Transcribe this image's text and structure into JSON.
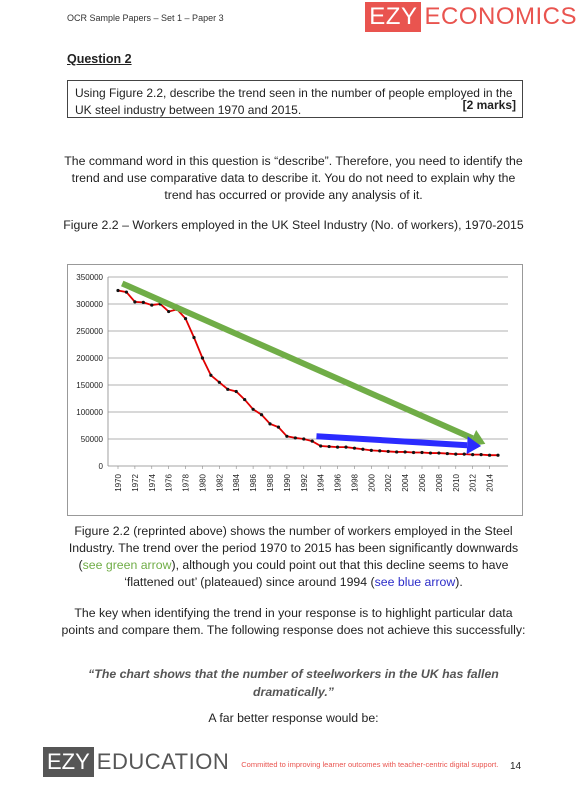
{
  "header": {
    "doc_title": "OCR Sample Papers – Set 1 – Paper 3",
    "logo_box": "EZY",
    "logo_word": "ECONOMICS"
  },
  "question": {
    "title": "Question 2",
    "text": "Using Figure 2.2, describe the trend seen in the number of people employed in the UK steel industry between 1970 and 2015.",
    "marks": "[2 marks]"
  },
  "intro": "The command word in this question is “describe”. Therefore, you need to identify the trend and use comparative data to describe it. You do not need to explain why the trend has occurred or provide any analysis of it.",
  "figure_caption": "Figure 2.2 – Workers employed in the UK Steel Industry (No. of workers), 1970-2015",
  "chart_data": {
    "type": "line",
    "title": "",
    "xlabel": "",
    "ylabel": "",
    "ylim": [
      0,
      350000
    ],
    "yticks": [
      "0",
      "50000",
      "100000",
      "150000",
      "200000",
      "250000",
      "300000",
      "350000"
    ],
    "xtick_labels": [
      "1970",
      "1972",
      "1974",
      "1976",
      "1978",
      "1980",
      "1982",
      "1984",
      "1986",
      "1988",
      "1990",
      "1992",
      "1994",
      "1996",
      "1998",
      "2000",
      "2002",
      "2004",
      "2006",
      "2008",
      "2010",
      "2012",
      "2014"
    ],
    "grid": "horizontal",
    "series": [
      {
        "color": "#e00000",
        "x": [
          1970,
          1971,
          1972,
          1973,
          1974,
          1975,
          1976,
          1977,
          1978,
          1979,
          1980,
          1981,
          1982,
          1983,
          1984,
          1985,
          1986,
          1987,
          1988,
          1989,
          1990,
          1991,
          1992,
          1993,
          1994,
          1995,
          1996,
          1997,
          1998,
          1999,
          2000,
          2001,
          2002,
          2003,
          2004,
          2005,
          2006,
          2007,
          2008,
          2009,
          2010,
          2011,
          2012,
          2013,
          2014,
          2015
        ],
        "values": [
          325000,
          322000,
          304000,
          303000,
          298000,
          300000,
          286000,
          290000,
          273000,
          238000,
          200000,
          168000,
          155000,
          142000,
          138000,
          123000,
          105000,
          95000,
          78000,
          72000,
          55000,
          52000,
          50000,
          46000,
          37000,
          36000,
          35000,
          35000,
          33000,
          31000,
          29000,
          28000,
          27000,
          26000,
          26000,
          25000,
          25000,
          24000,
          24000,
          23000,
          22000,
          22000,
          21000,
          21000,
          20000,
          20000
        ]
      }
    ],
    "annotations": [
      {
        "type": "arrow",
        "color": "#70ad47",
        "from": [
          1970.5,
          338000
        ],
        "to": [
          2013.5,
          41000
        ]
      },
      {
        "type": "arrow",
        "color": "#2b2bff",
        "from": [
          1993.5,
          55000
        ],
        "to": [
          2013,
          37000
        ]
      }
    ]
  },
  "body": {
    "p1_a": "Figure 2.2 (reprinted above) shows the number of workers employed in the Steel Industry. The trend over the period 1970 to 2015 has been significantly downwards (",
    "p1_green": "see green arrow",
    "p1_b": "), although you could point out that this decline seems to have ‘flattened out’ (plateaued) since around 1994 (",
    "p1_blue": "see blue arrow",
    "p1_c": ").",
    "p2": "The key when identifying the trend in your response is to highlight particular data points and compare them. The following response does not achieve this successfully:",
    "quote": "“The chart shows that the number of steelworkers in the UK has fallen dramatically.”",
    "better": "A far better response would be:"
  },
  "footer": {
    "box": "EZY",
    "word": "EDUCATION",
    "tagline": "Committed to improving learner outcomes with teacher-centric digital support.",
    "page": "14"
  }
}
